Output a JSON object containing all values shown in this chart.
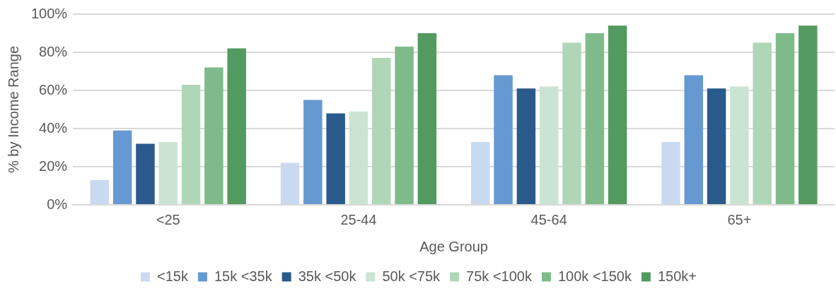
{
  "chart_data": {
    "type": "bar",
    "xlabel": "Age Group",
    "ylabel": "% by Income Range",
    "categories": [
      "<25",
      "25-44",
      "45-64",
      "65+"
    ],
    "series": [
      {
        "name": "<15k",
        "color": "#c9daf0",
        "values": [
          13,
          22,
          33,
          33
        ]
      },
      {
        "name": "15k <35k",
        "color": "#6699d2",
        "values": [
          39,
          55,
          68,
          68
        ]
      },
      {
        "name": "35k <50k",
        "color": "#2a5a8c",
        "values": [
          32,
          48,
          61,
          61
        ]
      },
      {
        "name": "50k <75k",
        "color": "#cbe3d3",
        "values": [
          33,
          49,
          62,
          62
        ]
      },
      {
        "name": "75k <100k",
        "color": "#b0d6b8",
        "values": [
          63,
          77,
          85,
          85
        ]
      },
      {
        "name": "100k <150k",
        "color": "#7fbb8a",
        "values": [
          72,
          83,
          90,
          90
        ]
      },
      {
        "name": "150k+",
        "color": "#529a60",
        "values": [
          82,
          90,
          94,
          94
        ]
      }
    ],
    "ylim": [
      0,
      100
    ],
    "yticks": [
      {
        "value": 0,
        "label": "0%"
      },
      {
        "value": 20,
        "label": "20%"
      },
      {
        "value": 40,
        "label": "40%"
      },
      {
        "value": 60,
        "label": "60%"
      },
      {
        "value": 80,
        "label": "80%"
      },
      {
        "value": 100,
        "label": "100%"
      }
    ],
    "grid": "y",
    "legend": "bottom"
  }
}
